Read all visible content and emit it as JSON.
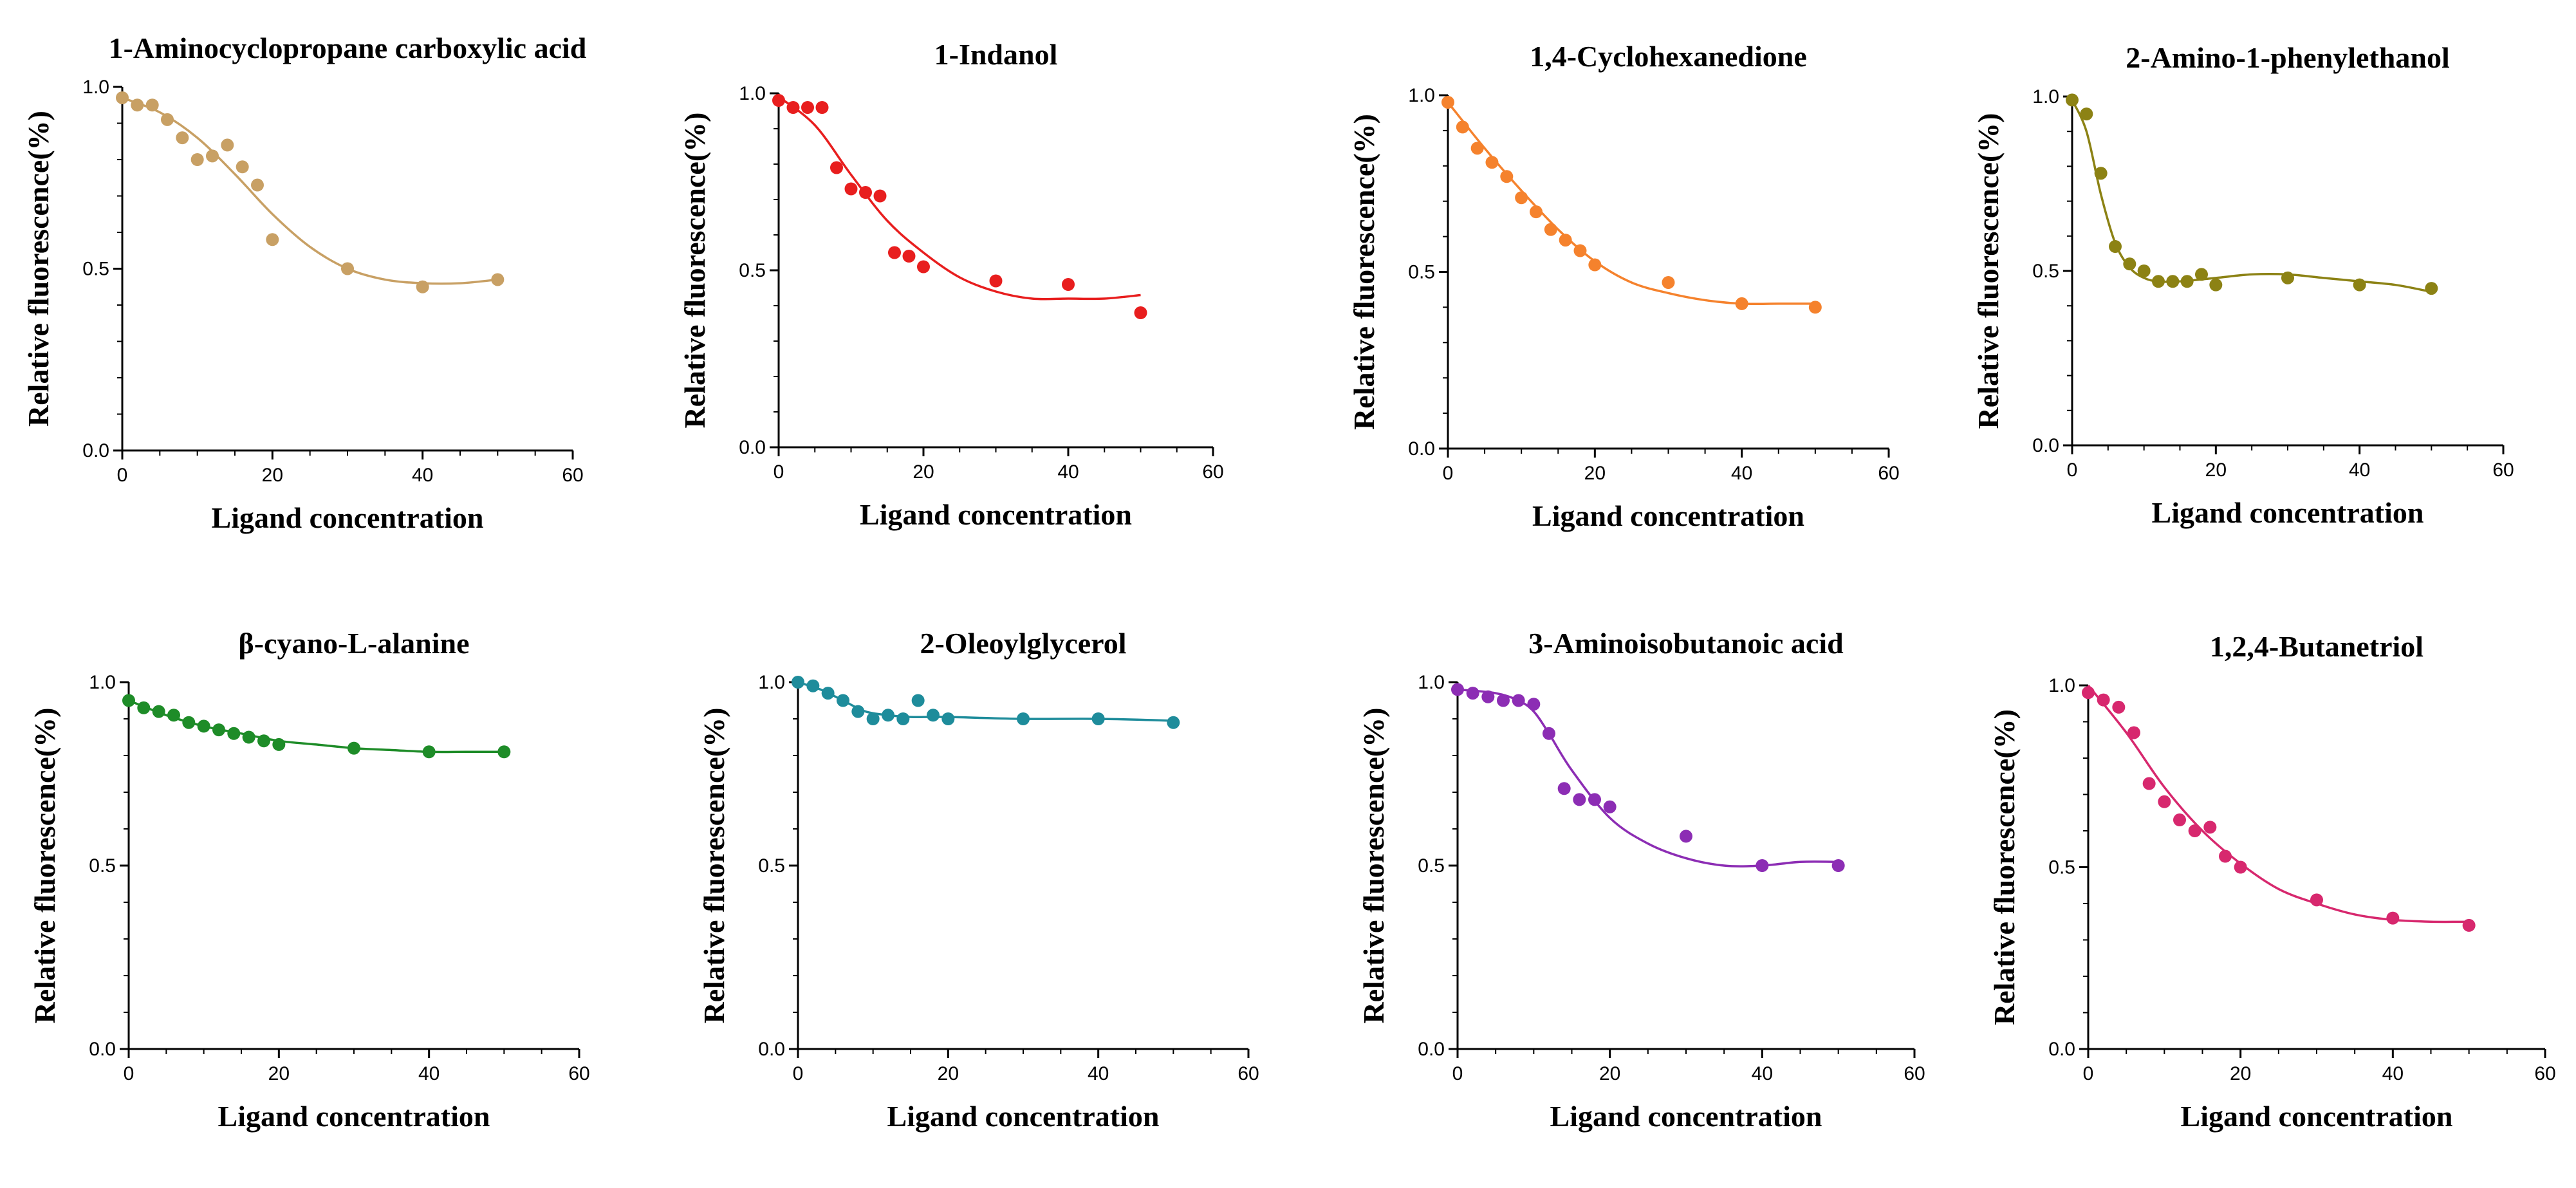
{
  "chart_data": [
    {
      "type": "scatter",
      "title": "1-Aminocyclopropane carboxylic acid",
      "xlabel": "Ligand concentration",
      "ylabel": "Relative fluorescence(%)",
      "xlim": [
        0,
        60
      ],
      "ylim": [
        0,
        1.0
      ],
      "xticks": [
        "0",
        "20",
        "40",
        "60"
      ],
      "yticks": [
        "0.0",
        "0.5",
        "1.0"
      ],
      "color": "#C8A064",
      "x": [
        0,
        2,
        4,
        6,
        8,
        10,
        12,
        14,
        16,
        18,
        20,
        30,
        40,
        50
      ],
      "y": [
        0.97,
        0.95,
        0.95,
        0.91,
        0.86,
        0.8,
        0.81,
        0.84,
        0.78,
        0.73,
        0.58,
        0.5,
        0.45,
        0.47
      ],
      "fit": {
        "x": [
          0,
          5,
          10,
          15,
          20,
          25,
          30,
          35,
          40,
          45,
          50
        ],
        "y": [
          0.97,
          0.93,
          0.86,
          0.76,
          0.65,
          0.56,
          0.5,
          0.47,
          0.46,
          0.46,
          0.47
        ]
      }
    },
    {
      "type": "scatter",
      "title": "1-Indanol",
      "xlabel": "Ligand concentration",
      "ylabel": "Relative fluorescence(%)",
      "xlim": [
        0,
        60
      ],
      "ylim": [
        0,
        1.0
      ],
      "xticks": [
        "0",
        "20",
        "40",
        "60"
      ],
      "yticks": [
        "0.0",
        "0.5",
        "1.0"
      ],
      "color": "#E81E1E",
      "x": [
        0,
        2,
        4,
        6,
        8,
        10,
        12,
        14,
        16,
        18,
        20,
        30,
        40,
        50
      ],
      "y": [
        0.98,
        0.96,
        0.96,
        0.96,
        0.79,
        0.73,
        0.72,
        0.71,
        0.55,
        0.54,
        0.51,
        0.47,
        0.46,
        0.38
      ],
      "fit": {
        "x": [
          0,
          5,
          10,
          15,
          20,
          25,
          30,
          35,
          40,
          45,
          50
        ],
        "y": [
          0.99,
          0.91,
          0.77,
          0.64,
          0.55,
          0.48,
          0.44,
          0.42,
          0.42,
          0.42,
          0.43
        ]
      }
    },
    {
      "type": "scatter",
      "title": "1,4-Cyclohexanedione",
      "xlabel": "Ligand concentration",
      "ylabel": "Relative fluorescence(%)",
      "xlim": [
        0,
        60
      ],
      "ylim": [
        0,
        1.0
      ],
      "xticks": [
        "0",
        "20",
        "40",
        "60"
      ],
      "yticks": [
        "0.0",
        "0.5",
        "1.0"
      ],
      "color": "#F5822D",
      "x": [
        0,
        2,
        4,
        6,
        8,
        10,
        12,
        14,
        16,
        18,
        20,
        30,
        40,
        50
      ],
      "y": [
        0.98,
        0.91,
        0.85,
        0.81,
        0.77,
        0.71,
        0.67,
        0.62,
        0.59,
        0.56,
        0.52,
        0.47,
        0.41,
        0.4
      ],
      "fit": {
        "x": [
          0,
          5,
          10,
          15,
          20,
          25,
          30,
          35,
          40,
          45,
          50
        ],
        "y": [
          0.98,
          0.85,
          0.73,
          0.62,
          0.53,
          0.47,
          0.44,
          0.42,
          0.41,
          0.41,
          0.41
        ]
      }
    },
    {
      "type": "scatter",
      "title": "2-Amino-1-phenylethanol",
      "xlabel": "Ligand concentration",
      "ylabel": "Relative fluorescence(%)",
      "xlim": [
        0,
        60
      ],
      "ylim": [
        0,
        1.0
      ],
      "xticks": [
        "0",
        "20",
        "40",
        "60"
      ],
      "yticks": [
        "0.0",
        "0.5",
        "1.0"
      ],
      "color": "#8C8214",
      "x": [
        0,
        2,
        4,
        6,
        8,
        10,
        12,
        14,
        16,
        18,
        20,
        30,
        40,
        50
      ],
      "y": [
        0.99,
        0.95,
        0.78,
        0.57,
        0.52,
        0.5,
        0.47,
        0.47,
        0.47,
        0.49,
        0.46,
        0.48,
        0.46,
        0.45
      ],
      "fit": {
        "x": [
          0,
          2,
          4,
          6,
          8,
          10,
          12,
          15,
          20,
          25,
          30,
          35,
          40,
          45,
          50
        ],
        "y": [
          0.99,
          0.9,
          0.72,
          0.58,
          0.51,
          0.48,
          0.47,
          0.47,
          0.48,
          0.49,
          0.49,
          0.48,
          0.47,
          0.46,
          0.44
        ]
      }
    },
    {
      "type": "scatter",
      "title": "β-cyano-L-alanine",
      "xlabel": "Ligand concentration",
      "ylabel": "Relative fluorescence(%)",
      "xlim": [
        0,
        60
      ],
      "ylim": [
        0,
        1.0
      ],
      "xticks": [
        "0",
        "20",
        "40",
        "60"
      ],
      "yticks": [
        "0.0",
        "0.5",
        "1.0"
      ],
      "color": "#1E8C28",
      "x": [
        0,
        2,
        4,
        6,
        8,
        10,
        12,
        14,
        16,
        18,
        20,
        30,
        40,
        50
      ],
      "y": [
        0.95,
        0.93,
        0.92,
        0.91,
        0.89,
        0.88,
        0.87,
        0.86,
        0.85,
        0.84,
        0.83,
        0.82,
        0.81,
        0.81
      ],
      "fit": {
        "x": [
          0,
          5,
          10,
          15,
          20,
          25,
          30,
          35,
          40,
          45,
          50
        ],
        "y": [
          0.95,
          0.91,
          0.88,
          0.86,
          0.84,
          0.83,
          0.82,
          0.815,
          0.81,
          0.81,
          0.81
        ]
      }
    },
    {
      "type": "scatter",
      "title": "2-Oleoylglycerol",
      "xlabel": "Ligand concentration",
      "ylabel": "Relative fluorescence(%)",
      "xlim": [
        0,
        60
      ],
      "ylim": [
        0,
        1.0
      ],
      "xticks": [
        "0",
        "20",
        "40",
        "60"
      ],
      "yticks": [
        "0.0",
        "0.5",
        "1.0"
      ],
      "color": "#1E8C9B",
      "x": [
        0,
        2,
        4,
        6,
        8,
        10,
        12,
        14,
        16,
        18,
        20,
        30,
        40,
        50
      ],
      "y": [
        1.0,
        0.99,
        0.97,
        0.95,
        0.92,
        0.9,
        0.91,
        0.9,
        0.95,
        0.91,
        0.9,
        0.9,
        0.9,
        0.89
      ],
      "fit": {
        "x": [
          0,
          3,
          6,
          9,
          12,
          15,
          20,
          30,
          40,
          50
        ],
        "y": [
          1.0,
          0.98,
          0.95,
          0.92,
          0.91,
          0.905,
          0.905,
          0.9,
          0.9,
          0.895
        ]
      }
    },
    {
      "type": "scatter",
      "title": "3-Aminoisobutanoic acid",
      "xlabel": "Ligand concentration",
      "ylabel": "Relative fluorescence(%)",
      "xlim": [
        0,
        60
      ],
      "ylim": [
        0,
        1.0
      ],
      "xticks": [
        "0",
        "20",
        "40",
        "60"
      ],
      "yticks": [
        "0.0",
        "0.5",
        "1.0"
      ],
      "color": "#8C2DB4",
      "x": [
        0,
        2,
        4,
        6,
        8,
        10,
        12,
        14,
        16,
        18,
        20,
        30,
        40,
        50
      ],
      "y": [
        0.98,
        0.97,
        0.96,
        0.95,
        0.95,
        0.94,
        0.86,
        0.71,
        0.68,
        0.68,
        0.66,
        0.58,
        0.5,
        0.5
      ],
      "fit": {
        "x": [
          0,
          5,
          8,
          10,
          12,
          15,
          20,
          25,
          30,
          35,
          40,
          45,
          50
        ],
        "y": [
          0.98,
          0.97,
          0.95,
          0.92,
          0.86,
          0.76,
          0.63,
          0.56,
          0.52,
          0.5,
          0.5,
          0.51,
          0.51
        ]
      }
    },
    {
      "type": "scatter",
      "title": "1,2,4-Butanetriol",
      "xlabel": "Ligand concentration",
      "ylabel": "Relative fluorescence(%)",
      "xlim": [
        0,
        60
      ],
      "ylim": [
        0,
        1.0
      ],
      "xticks": [
        "0",
        "20",
        "40",
        "60"
      ],
      "yticks": [
        "0.0",
        "0.5",
        "1.0"
      ],
      "color": "#D7286E",
      "x": [
        0,
        2,
        4,
        6,
        8,
        10,
        12,
        14,
        16,
        18,
        20,
        30,
        40,
        50
      ],
      "y": [
        0.98,
        0.96,
        0.94,
        0.87,
        0.73,
        0.68,
        0.63,
        0.6,
        0.61,
        0.53,
        0.5,
        0.41,
        0.36,
        0.34
      ],
      "fit": {
        "x": [
          0,
          5,
          10,
          15,
          20,
          25,
          30,
          35,
          40,
          45,
          50
        ],
        "y": [
          1.0,
          0.87,
          0.72,
          0.6,
          0.51,
          0.44,
          0.4,
          0.37,
          0.355,
          0.35,
          0.35
        ]
      }
    }
  ]
}
